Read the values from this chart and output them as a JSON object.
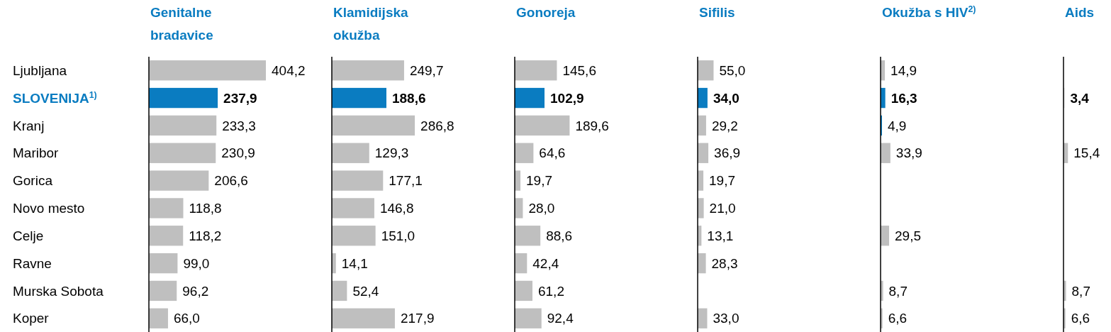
{
  "chart_data": [
    {
      "type": "bar",
      "orientation": "horizontal",
      "title": "Genitalne bradavice",
      "categories": [
        "Ljubljana",
        "SLOVENIJA$^{1)}$",
        "Kranj",
        "Maribor",
        "Gorica",
        "Novo mesto",
        "Celje",
        "Ravne",
        "Murska Sobota",
        "Koper"
      ],
      "values": [
        404.2,
        237.9,
        233.3,
        230.9,
        206.6,
        118.8,
        118.2,
        99.0,
        96.2,
        66.0
      ],
      "value_labels": [
        "404,2",
        "237,9",
        "233,3",
        "230,9",
        "206,6",
        "118,8",
        "118,2",
        "99,0",
        "96,2",
        "66,0"
      ],
      "colors": [
        "#bfbfbf",
        "#0a7cc1",
        "#bfbfbf",
        "#bfbfbf",
        "#bfbfbf",
        "#bfbfbf",
        "#bfbfbf",
        "#bfbfbf",
        "#bfbfbf",
        "#bfbfbf"
      ],
      "tick_labels": "y"
    },
    {
      "type": "bar",
      "orientation": "horizontal",
      "title": "Klamidijska okužba",
      "categories": [
        null,
        null,
        null,
        null,
        null,
        null,
        null,
        null,
        null,
        null
      ],
      "values": [
        249.7,
        188.6,
        286.8,
        129.3,
        177.1,
        146.8,
        151.0,
        14.1,
        52.4,
        217.9
      ],
      "value_labels": [
        "249,7",
        "188,6",
        "286,8",
        "129,3",
        "177,1",
        "146,8",
        "151,0",
        "14,1",
        "52,4",
        "217,9"
      ],
      "colors": [
        "#bfbfbf",
        "#0a7cc1",
        "#bfbfbf",
        "#bfbfbf",
        "#bfbfbf",
        "#bfbfbf",
        "#bfbfbf",
        "#bfbfbf",
        "#bfbfbf",
        "#bfbfbf"
      ],
      "tick_labels": false
    },
    {
      "type": "bar",
      "orientation": "horizontal",
      "title": "Gonoreja",
      "categories": [
        null,
        null,
        null,
        null,
        null,
        null,
        null,
        null,
        null,
        null
      ],
      "values": [
        145.6,
        102.9,
        189.6,
        64.6,
        19.7,
        28.0,
        88.6,
        42.4,
        61.2,
        92.4
      ],
      "value_labels": [
        "145,6",
        "102,9",
        "189,6",
        "64,6",
        "19,7",
        "28,0",
        "88,6",
        "42,4",
        "61,2",
        "92,4"
      ],
      "colors": [
        "#bfbfbf",
        "#0a7cc1",
        "#bfbfbf",
        "#bfbfbf",
        "#bfbfbf",
        "#bfbfbf",
        "#bfbfbf",
        "#bfbfbf",
        "#bfbfbf",
        "#bfbfbf"
      ],
      "tick_labels": false
    },
    {
      "type": "bar",
      "orientation": "horizontal",
      "title": "Sifilis",
      "categories": [
        null,
        null,
        null,
        null,
        null,
        null,
        null,
        null,
        null,
        null
      ],
      "values": [
        55.0,
        34.0,
        29.2,
        36.9,
        19.7,
        21.0,
        13.1,
        28.3,
        null,
        33.0
      ],
      "value_labels": [
        "55,0",
        "34,0",
        "29,2",
        "36,9",
        "19,7",
        "21,0",
        "13,1",
        "28,3",
        null,
        "33,0"
      ],
      "colors": [
        "#bfbfbf",
        "#0a7cc1",
        "#bfbfbf",
        "#bfbfbf",
        "#bfbfbf",
        "#bfbfbf",
        "#bfbfbf",
        "#bfbfbf",
        null,
        "#bfbfbf"
      ],
      "tick_labels": false
    },
    {
      "type": "bar",
      "orientation": "horizontal",
      "title": "Okužba s HIV$^{2)}$",
      "categories": [
        null,
        null,
        null,
        null,
        null,
        null,
        null,
        null,
        null,
        null
      ],
      "values": [
        14.9,
        16.3,
        4.9,
        33.9,
        null,
        null,
        29.5,
        null,
        8.7,
        6.6
      ],
      "value_labels": [
        "14,9",
        "16,3",
        "4,9",
        "33,9",
        null,
        null,
        "29,5",
        null,
        "8,7",
        "6,6"
      ],
      "colors": [
        "#bfbfbf",
        "#0a7cc1",
        "#0a7cc1",
        "#bfbfbf",
        null,
        null,
        "#bfbfbf",
        null,
        "#bfbfbf",
        "#bfbfbf"
      ],
      "tick_labels": false
    },
    {
      "type": "bar",
      "orientation": "horizontal",
      "title": "Aids",
      "categories": [
        null,
        null,
        null,
        null,
        null,
        null,
        null,
        null,
        null,
        null
      ],
      "values": [
        null,
        3.4,
        null,
        15.4,
        null,
        null,
        null,
        null,
        8.7,
        6.6
      ],
      "value_labels": [
        null,
        "3,4",
        null,
        "15,4",
        null,
        null,
        null,
        null,
        "8,7",
        "6,6"
      ],
      "colors": [
        null,
        "#d9d9d9",
        null,
        "#bfbfbf",
        null,
        null,
        null,
        null,
        "#bfbfbf",
        "#bfbfbf"
      ],
      "tick_labels": false
    }
  ]
}
